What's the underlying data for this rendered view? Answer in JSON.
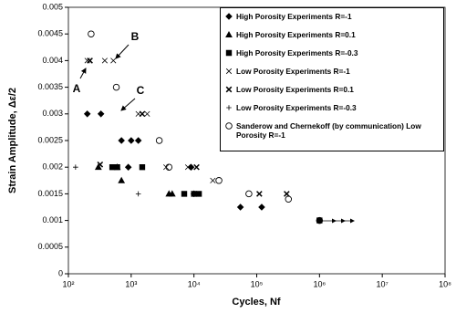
{
  "chart_data": {
    "type": "scatter",
    "x_label": "Cycles, Nf",
    "y_label": "Strain Amplitude, Δε/2",
    "xscale": "log",
    "xlim": [
      100,
      100000000
    ],
    "xticks": [
      {
        "value": 100,
        "label": "10²"
      },
      {
        "value": 1000,
        "label": "10³"
      },
      {
        "value": 10000,
        "label": "10⁴"
      },
      {
        "value": 100000,
        "label": "10⁵"
      },
      {
        "value": 1000000,
        "label": "10⁶"
      },
      {
        "value": 10000000,
        "label": "10⁷"
      },
      {
        "value": 100000000,
        "label": "10⁸"
      }
    ],
    "ylim": [
      0,
      0.005
    ],
    "yticks": [
      0,
      0.0005,
      0.001,
      0.0015,
      0.002,
      0.0025,
      0.003,
      0.0035,
      0.004,
      0.0045,
      0.005
    ],
    "annotations": [
      "A",
      "B",
      "C"
    ],
    "series": [
      {
        "name": "High Porosity Experiments R=-1",
        "color": "#000000",
        "marker": "diamond",
        "x": [
          200,
          330,
          700,
          1000,
          1300,
          900,
          9000,
          10000,
          55000,
          120000
        ],
        "values": [
          0.003,
          0.003,
          0.0025,
          0.0025,
          0.0025,
          0.002,
          0.002,
          0.0015,
          0.00125,
          0.00125
        ]
      },
      {
        "name": "High Porosity Experiments R=0.1",
        "color": "#000000",
        "marker": "triangle",
        "x": [
          300,
          600,
          700,
          4000,
          4500
        ],
        "values": [
          0.002,
          0.002,
          0.00175,
          0.0015,
          0.0015
        ]
      },
      {
        "name": "High Porosity Experiments R=-0.3",
        "color": "#000000",
        "marker": "square",
        "x": [
          500,
          600,
          1500,
          7000,
          10000,
          12000,
          1000000
        ],
        "values": [
          0.002,
          0.002,
          0.002,
          0.0015,
          0.0015,
          0.0015,
          0.001
        ]
      },
      {
        "name": "Low Porosity Experiments R=-1",
        "color": "#000000",
        "marker": "x",
        "x": [
          200,
          380,
          520,
          1300,
          1800,
          3600,
          8000,
          20000
        ],
        "values": [
          0.004,
          0.004,
          0.004,
          0.003,
          0.003,
          0.002,
          0.002,
          0.00175
        ]
      },
      {
        "name": "Low Porosity Experiments R=0.1",
        "color": "#000000",
        "marker": "xbold",
        "x": [
          220,
          1500,
          320,
          11000,
          110000,
          300000
        ],
        "values": [
          0.004,
          0.003,
          0.00205,
          0.002,
          0.0015,
          0.0015
        ]
      },
      {
        "name": "Low Porosity Experiments R=-0.3",
        "color": "#000000",
        "marker": "plus",
        "x": [
          130,
          1300
        ],
        "values": [
          0.002,
          0.0015
        ]
      },
      {
        "name": "Sanderow and Chernekoff (by communication) Low Porosity R=-1",
        "color": "#000000",
        "marker": "circle",
        "x": [
          230,
          580,
          2800,
          4000,
          25000,
          75000,
          320000,
          1000000
        ],
        "values": [
          0.0045,
          0.0035,
          0.0025,
          0.002,
          0.00175,
          0.0015,
          0.0014,
          0.001
        ]
      }
    ]
  }
}
